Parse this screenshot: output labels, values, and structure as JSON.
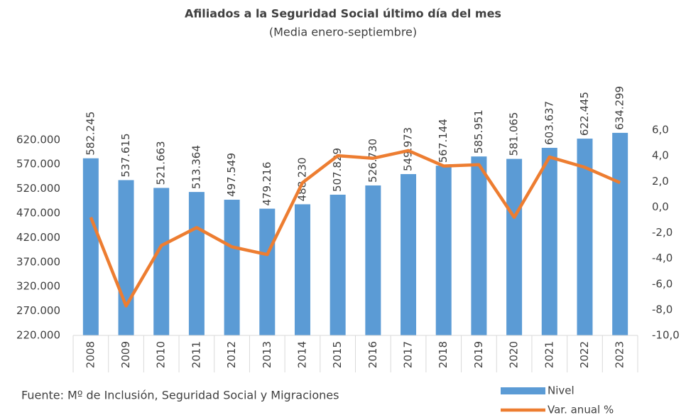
{
  "chart_data": {
    "type": "bar-line",
    "title": "Afiliados a la Seguridad Social último día del mes",
    "subtitle": "(Media enero-septiembre)",
    "source": "Fuente: Mº de Inclusión, Seguridad Social y Migraciones",
    "categories": [
      "2008",
      "2009",
      "2010",
      "2011",
      "2012",
      "2013",
      "2014",
      "2015",
      "2016",
      "2017",
      "2018",
      "2019",
      "2020",
      "2021",
      "2022",
      "2023"
    ],
    "series": [
      {
        "name": "Nivel",
        "type": "bar",
        "color": "#5b9bd5",
        "axis": "y",
        "values": [
          582245,
          537615,
          521663,
          513364,
          497549,
          479216,
          488230,
          507829,
          526730,
          549973,
          567144,
          585951,
          581065,
          603637,
          622445,
          634299
        ],
        "value_labels": [
          "582.245",
          "537.615",
          "521.663",
          "513.364",
          "497.549",
          "479.216",
          "488.230",
          "507.829",
          "526.730",
          "549.973",
          "567.144",
          "585.951",
          "581.065",
          "603.637",
          "622.445",
          "634.299"
        ]
      },
      {
        "name": "Var. anual %",
        "type": "line",
        "color": "#ed7d31",
        "axis": "y2",
        "values": [
          -0.8,
          -7.7,
          -3.0,
          -1.6,
          -3.1,
          -3.7,
          1.9,
          4.0,
          3.8,
          4.4,
          3.2,
          3.3,
          -0.8,
          3.9,
          3.1,
          1.9
        ]
      }
    ],
    "ylim": [
      220000,
      640000
    ],
    "yticks": [
      {
        "value": 220000,
        "label": "220.000"
      },
      {
        "value": 270000,
        "label": "270.000"
      },
      {
        "value": 320000,
        "label": "320.000"
      },
      {
        "value": 370000,
        "label": "370.000"
      },
      {
        "value": 420000,
        "label": "420.000"
      },
      {
        "value": 470000,
        "label": "470.000"
      },
      {
        "value": 520000,
        "label": "520.000"
      },
      {
        "value": 570000,
        "label": "570.000"
      },
      {
        "value": 620000,
        "label": "620.000"
      }
    ],
    "y2lim": [
      -10,
      6
    ],
    "y2ticks": [
      {
        "value": -10,
        "label": "-10,0"
      },
      {
        "value": -8,
        "label": "-8,0"
      },
      {
        "value": -6,
        "label": "-6,0"
      },
      {
        "value": -4,
        "label": "-4,0"
      },
      {
        "value": -2,
        "label": "-2,0"
      },
      {
        "value": 0,
        "label": "0,0"
      },
      {
        "value": 2,
        "label": "2,0"
      },
      {
        "value": 4,
        "label": "4,0"
      },
      {
        "value": 6,
        "label": "6,0"
      }
    ],
    "legend": "bottom-right"
  }
}
